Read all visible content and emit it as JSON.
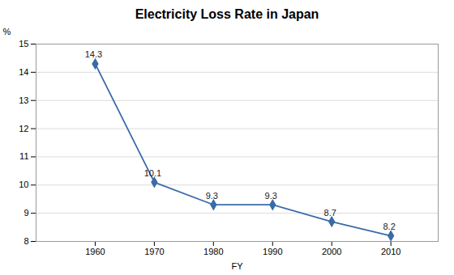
{
  "chart_data": {
    "type": "line",
    "title": "Electricity Loss Rate in Japan",
    "xlabel": "FY",
    "ylabel": "%",
    "x": [
      1960,
      1970,
      1980,
      1990,
      2000,
      2010
    ],
    "values": [
      14.3,
      10.1,
      9.3,
      9.3,
      8.7,
      8.2
    ],
    "xlim": [
      1950,
      2018
    ],
    "xticks": [
      1960,
      1970,
      1980,
      1990,
      2000,
      2010
    ],
    "ylim": [
      8,
      15
    ],
    "yticks": [
      8,
      9,
      10,
      11,
      12,
      13,
      14,
      15
    ],
    "color": "#3A6BA8",
    "marker": "diamond",
    "grid": "y",
    "data_labels": true
  }
}
